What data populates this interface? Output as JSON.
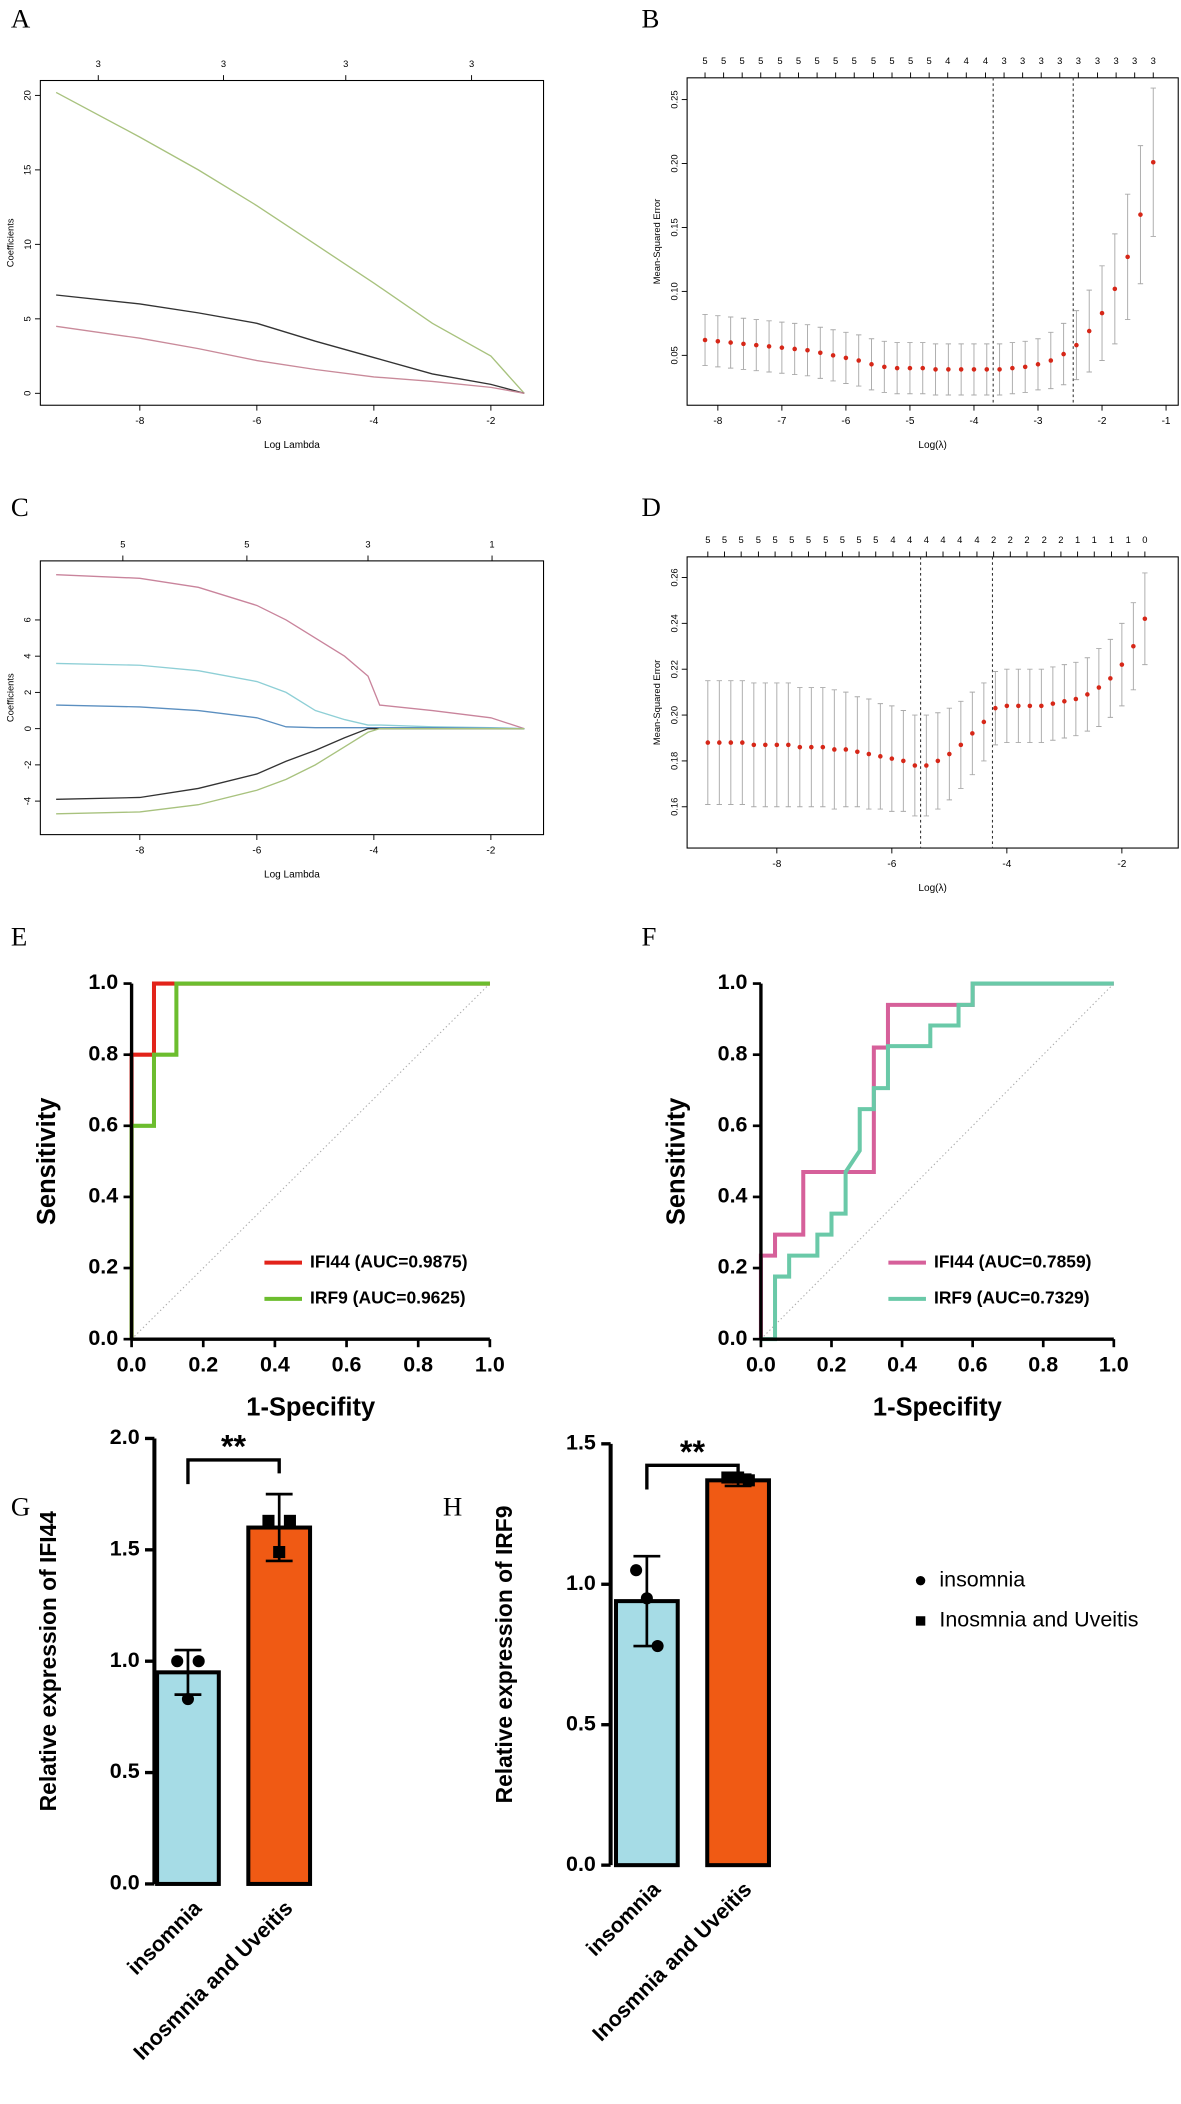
{
  "chart_data": [
    {
      "panel": "A",
      "type": "line",
      "xlabel": "Log Lambda",
      "ylabel": "Coefficients",
      "xlim": [
        -9.7,
        -1.1
      ],
      "ylim": [
        -0.8,
        21
      ],
      "xticks": [
        -8,
        -6,
        -4,
        -2
      ],
      "yticks": [
        0,
        5,
        10,
        15,
        20
      ],
      "xticks_top": [
        {
          "value": -8.71,
          "label": "3"
        },
        {
          "value": -6.57,
          "label": "3"
        },
        {
          "value": -4.48,
          "label": "3"
        },
        {
          "value": -2.33,
          "label": "3"
        }
      ],
      "x": [
        -9.43,
        -8,
        -7,
        -6,
        -5,
        -4,
        -3,
        -2,
        -1.43
      ],
      "series": [
        {
          "color": "#a8c27e",
          "values": [
            20.2,
            17.2,
            15,
            12.6,
            10,
            7.4,
            4.7,
            2.5,
            0
          ]
        },
        {
          "color": "#333333",
          "values": [
            6.6,
            6.0,
            5.4,
            4.7,
            3.5,
            2.4,
            1.3,
            0.6,
            0
          ]
        },
        {
          "color": "#c98a9a",
          "values": [
            4.5,
            3.7,
            3.0,
            2.2,
            1.6,
            1.1,
            0.8,
            0.4,
            0
          ]
        }
      ]
    },
    {
      "panel": "B",
      "type": "errorbar",
      "xlabel": "Log(λ)",
      "ylabel": "Mean-Squared Error",
      "xlim": [
        -8.48,
        -0.81
      ],
      "ylim": [
        0.011,
        0.267
      ],
      "xticks": [
        -8,
        -7,
        -6,
        -5,
        -4,
        -3,
        -2,
        -1
      ],
      "yticks": [
        0.05,
        {
          "value": 0.1,
          "label": "0.10"
        },
        0.15,
        {
          "value": 0.2,
          "label": "0.20"
        },
        0.25
      ],
      "xticks_top": [
        {
          "value": -8.2,
          "label": "5"
        },
        {
          "value": -7.91,
          "label": "5"
        },
        {
          "value": -7.62,
          "label": "5"
        },
        {
          "value": -7.33,
          "label": "5"
        },
        {
          "value": -7.03,
          "label": "5"
        },
        {
          "value": -6.74,
          "label": "5"
        },
        {
          "value": -6.45,
          "label": "5"
        },
        {
          "value": -6.16,
          "label": "5"
        },
        {
          "value": -5.87,
          "label": "5"
        },
        {
          "value": -5.57,
          "label": "5"
        },
        {
          "value": -5.28,
          "label": "5"
        },
        {
          "value": -4.99,
          "label": "5"
        },
        {
          "value": -4.7,
          "label": "5"
        },
        {
          "value": -4.41,
          "label": "4"
        },
        {
          "value": -4.12,
          "label": "4"
        },
        {
          "value": -3.82,
          "label": "4"
        },
        {
          "value": -3.53,
          "label": "3"
        },
        {
          "value": -3.24,
          "label": "3"
        },
        {
          "value": -2.95,
          "label": "3"
        },
        {
          "value": -2.66,
          "label": "3"
        },
        {
          "value": -2.37,
          "label": "3"
        },
        {
          "value": -2.07,
          "label": "3"
        },
        {
          "value": -1.78,
          "label": "3"
        },
        {
          "value": -1.49,
          "label": "3"
        },
        {
          "value": -1.2,
          "label": "3"
        }
      ],
      "x": [
        -8.2,
        -8.0,
        -7.8,
        -7.6,
        -7.4,
        -7.2,
        -7.0,
        -6.8,
        -6.6,
        -6.4,
        -6.2,
        -6.0,
        -5.8,
        -5.6,
        -5.4,
        -5.2,
        -5.0,
        -4.8,
        -4.6,
        -4.4,
        -4.2,
        -4.0,
        -3.8,
        -3.6,
        -3.4,
        -3.2,
        -3.0,
        -2.8,
        -2.6,
        -2.4,
        -2.2,
        -2.0,
        -1.8,
        -1.6,
        -1.4,
        -1.2
      ],
      "values": [
        0.062,
        0.061,
        0.06,
        0.059,
        0.058,
        0.057,
        0.056,
        0.055,
        0.054,
        0.052,
        0.05,
        0.048,
        0.046,
        0.043,
        0.041,
        0.04,
        0.04,
        0.04,
        0.039,
        0.039,
        0.039,
        0.039,
        0.039,
        0.039,
        0.04,
        0.041,
        0.043,
        0.046,
        0.051,
        0.058,
        0.069,
        0.083,
        0.102,
        0.127,
        0.16,
        0.201
      ],
      "errors": [
        0.02,
        0.02,
        0.02,
        0.02,
        0.02,
        0.02,
        0.02,
        0.02,
        0.02,
        0.02,
        0.02,
        0.02,
        0.02,
        0.02,
        0.02,
        0.02,
        0.02,
        0.02,
        0.02,
        0.02,
        0.02,
        0.02,
        0.02,
        0.02,
        0.02,
        0.02,
        0.02,
        0.022,
        0.024,
        0.027,
        0.032,
        0.037,
        0.043,
        0.049,
        0.054,
        0.058
      ],
      "color": "#d62718",
      "error_color": "#aaaaaa",
      "vlines": [
        -3.7,
        -2.45
      ]
    },
    {
      "panel": "C",
      "type": "line",
      "xlabel": "Log Lambda",
      "ylabel": "Coefficients",
      "xlim": [
        -9.7,
        -1.1
      ],
      "ylim": [
        -5.85,
        9.26
      ],
      "xticks": [
        -8,
        -6,
        -4,
        -2
      ],
      "yticks": [
        -4,
        -2,
        0,
        2,
        4,
        6
      ],
      "xticks_top": [
        {
          "value": -8.29,
          "label": "5"
        },
        {
          "value": -6.17,
          "label": "5"
        },
        {
          "value": -4.1,
          "label": "3"
        },
        {
          "value": -1.98,
          "label": "1"
        }
      ],
      "x": [
        -9.43,
        -8,
        -7,
        -6,
        -5.5,
        -5,
        -4.5,
        -4.1,
        -3.9,
        -3,
        -2,
        -1.43
      ],
      "series": [
        {
          "color": "#c9849c",
          "values": [
            8.5,
            8.3,
            7.8,
            6.8,
            6.0,
            5.0,
            4.0,
            2.9,
            1.3,
            1.0,
            0.6,
            0
          ]
        },
        {
          "color": "#8ecfd6",
          "values": [
            3.6,
            3.5,
            3.2,
            2.6,
            2.0,
            1.0,
            0.5,
            0.2,
            0.2,
            0.1,
            0.05,
            0
          ]
        },
        {
          "color": "#5b8fc0",
          "values": [
            1.3,
            1.2,
            1.0,
            0.6,
            0.1,
            0.05,
            0.05,
            0.05,
            0.05,
            0.05,
            0.02,
            0
          ]
        },
        {
          "color": "#333333",
          "values": [
            -3.9,
            -3.8,
            -3.3,
            -2.5,
            -1.8,
            -1.2,
            -0.5,
            0,
            0,
            0,
            0,
            0
          ]
        },
        {
          "color": "#a8c27e",
          "values": [
            -4.7,
            -4.6,
            -4.2,
            -3.4,
            -2.8,
            -2.0,
            -1.0,
            -0.2,
            0,
            0,
            0,
            0
          ]
        }
      ]
    },
    {
      "panel": "D",
      "type": "errorbar",
      "xlabel": "Log(λ)",
      "ylabel": "Mean-Squared Error",
      "xlim": [
        -9.56,
        -1.02
      ],
      "ylim": [
        0.142,
        0.269
      ],
      "xticks": [
        -8,
        -6,
        -4,
        -2
      ],
      "yticks": [
        0.16,
        0.18,
        {
          "value": 0.2,
          "label": "0.20"
        },
        0.22,
        0.24,
        0.26
      ],
      "xticks_top": [
        {
          "value": -9.2,
          "label": "5"
        },
        {
          "value": -8.91,
          "label": "5"
        },
        {
          "value": -8.62,
          "label": "5"
        },
        {
          "value": -8.32,
          "label": "5"
        },
        {
          "value": -8.03,
          "label": "5"
        },
        {
          "value": -7.74,
          "label": "5"
        },
        {
          "value": -7.45,
          "label": "5"
        },
        {
          "value": -7.15,
          "label": "5"
        },
        {
          "value": -6.86,
          "label": "5"
        },
        {
          "value": -6.57,
          "label": "5"
        },
        {
          "value": -6.28,
          "label": "5"
        },
        {
          "value": -5.98,
          "label": "4"
        },
        {
          "value": -5.69,
          "label": "4"
        },
        {
          "value": -5.4,
          "label": "4"
        },
        {
          "value": -5.11,
          "label": "4"
        },
        {
          "value": -4.82,
          "label": "4"
        },
        {
          "value": -4.52,
          "label": "4"
        },
        {
          "value": -4.23,
          "label": "2"
        },
        {
          "value": -3.94,
          "label": "2"
        },
        {
          "value": -3.65,
          "label": "2"
        },
        {
          "value": -3.35,
          "label": "2"
        },
        {
          "value": -3.06,
          "label": "2"
        },
        {
          "value": -2.77,
          "label": "1"
        },
        {
          "value": -2.48,
          "label": "1"
        },
        {
          "value": -2.18,
          "label": "1"
        },
        {
          "value": -1.89,
          "label": "1"
        },
        {
          "value": -1.6,
          "label": "0"
        }
      ],
      "x": [
        -9.2,
        -9.0,
        -8.8,
        -8.6,
        -8.4,
        -8.2,
        -8.0,
        -7.8,
        -7.6,
        -7.4,
        -7.2,
        -7.0,
        -6.8,
        -6.6,
        -6.4,
        -6.2,
        -6.0,
        -5.8,
        -5.6,
        -5.4,
        -5.2,
        -5.0,
        -4.8,
        -4.6,
        -4.4,
        -4.2,
        -4.0,
        -3.8,
        -3.6,
        -3.4,
        -3.2,
        -3.0,
        -2.8,
        -2.6,
        -2.4,
        -2.2,
        -2.0,
        -1.8,
        -1.6
      ],
      "values": [
        0.188,
        0.188,
        0.188,
        0.188,
        0.187,
        0.187,
        0.187,
        0.187,
        0.186,
        0.186,
        0.186,
        0.185,
        0.185,
        0.184,
        0.183,
        0.182,
        0.181,
        0.18,
        0.178,
        0.178,
        0.18,
        0.183,
        0.187,
        0.192,
        0.197,
        0.203,
        0.204,
        0.204,
        0.204,
        0.204,
        0.205,
        0.206,
        0.207,
        0.209,
        0.212,
        0.216,
        0.222,
        0.23,
        0.242
      ],
      "errors": [
        0.027,
        0.027,
        0.027,
        0.027,
        0.027,
        0.027,
        0.027,
        0.027,
        0.026,
        0.026,
        0.026,
        0.026,
        0.025,
        0.024,
        0.024,
        0.023,
        0.023,
        0.022,
        0.022,
        0.022,
        0.021,
        0.02,
        0.019,
        0.018,
        0.017,
        0.016,
        0.016,
        0.016,
        0.016,
        0.016,
        0.016,
        0.016,
        0.016,
        0.016,
        0.017,
        0.017,
        0.018,
        0.019,
        0.02
      ],
      "color": "#d62718",
      "error_color": "#aaaaaa",
      "vlines": [
        -5.5,
        -4.25
      ]
    },
    {
      "panel": "E",
      "type": "roc",
      "xlabel": "1-Specifity",
      "ylabel": "Sensitivity",
      "legend": "lower right",
      "xlim": [
        0,
        1
      ],
      "ylim": [
        0,
        1
      ],
      "xticks": [
        {
          "value": 0,
          "label": "0.0"
        },
        0.2,
        0.4,
        0.6,
        0.8,
        {
          "value": 1,
          "label": "1.0"
        }
      ],
      "yticks": [
        {
          "value": 0,
          "label": "0.0"
        },
        0.2,
        0.4,
        0.6,
        0.8,
        {
          "value": 1,
          "label": "1.0"
        }
      ],
      "series": [
        {
          "name": "IFI44 (AUC=0.9875)",
          "color": "#e2231a",
          "x": [
            0,
            0,
            0.0625,
            0.0625,
            1
          ],
          "values": [
            0,
            0.8,
            0.8,
            1,
            1
          ]
        },
        {
          "name": "IRF9 (AUC=0.9625)",
          "color": "#6cbd2e",
          "x": [
            0,
            0,
            0.0625,
            0.0625,
            0.125,
            0.125,
            1
          ],
          "values": [
            0,
            0.6,
            0.6,
            0.8,
            0.8,
            1,
            1
          ]
        }
      ]
    },
    {
      "panel": "F",
      "type": "roc",
      "xlabel": "1-Specifity",
      "ylabel": "Sensitivity",
      "legend": "lower right",
      "xlim": [
        0,
        1
      ],
      "ylim": [
        0,
        1
      ],
      "xticks": [
        {
          "value": 0,
          "label": "0.0"
        },
        0.2,
        0.4,
        0.6,
        0.8,
        {
          "value": 1,
          "label": "1.0"
        }
      ],
      "yticks": [
        {
          "value": 0,
          "label": "0.0"
        },
        0.2,
        0.4,
        0.6,
        0.8,
        {
          "value": 1,
          "label": "1.0"
        }
      ],
      "series": [
        {
          "name": "IFI44 (AUC=0.7859)",
          "color": "#d6609a",
          "x": [
            0,
            0,
            0.04,
            0.04,
            0.12,
            0.12,
            0.32,
            0.32,
            0.36,
            0.36,
            0.6,
            0.6,
            1
          ],
          "values": [
            0,
            0.235,
            0.235,
            0.294,
            0.294,
            0.47,
            0.47,
            0.82,
            0.82,
            0.94,
            0.94,
            1,
            1
          ]
        },
        {
          "name": "IRF9 (AUC=0.7329)",
          "color": "#6ac9a8",
          "x": [
            0,
            0.04,
            0.04,
            0.08,
            0.08,
            0.16,
            0.16,
            0.2,
            0.2,
            0.24,
            0.24,
            0.28,
            0.28,
            0.32,
            0.32,
            0.36,
            0.36,
            0.48,
            0.48,
            0.56,
            0.56,
            0.6,
            0.6,
            1
          ],
          "values": [
            0,
            0,
            0.176,
            0.176,
            0.235,
            0.235,
            0.294,
            0.294,
            0.353,
            0.353,
            0.47,
            0.53,
            0.647,
            0.647,
            0.706,
            0.706,
            0.824,
            0.824,
            0.882,
            0.882,
            0.94,
            0.94,
            1,
            1
          ]
        }
      ]
    },
    {
      "panel": "G",
      "type": "bar",
      "ylabel": "Relative expression of IFI44",
      "categories": [
        "insomnia",
        "Inosmnia and Uveitis"
      ],
      "values": [
        0.95,
        1.6
      ],
      "errors": [
        0.1,
        0.15
      ],
      "points": [
        [
          1.0,
          0.83,
          1.0
        ],
        [
          1.63,
          1.49,
          1.63
        ]
      ],
      "colors": [
        "#a6dce6",
        "#f05a14"
      ],
      "markers": [
        "circle",
        "square"
      ],
      "significance": "**",
      "ylim": [
        0,
        2
      ],
      "yticks": [
        {
          "value": 0,
          "label": "0.0"
        },
        0.5,
        {
          "value": 1,
          "label": "1.0"
        },
        1.5,
        {
          "value": 2,
          "label": "2.0"
        }
      ]
    },
    {
      "panel": "H",
      "type": "bar",
      "ylabel": "Relative expression of IRF9",
      "categories": [
        "insomnia",
        "Inosmnia and Uveitis"
      ],
      "values": [
        0.94,
        1.37
      ],
      "errors": [
        0.16,
        0.02
      ],
      "points": [
        [
          1.05,
          0.95,
          0.78
        ],
        [
          1.38,
          1.38,
          1.37
        ]
      ],
      "colors": [
        "#a6dce6",
        "#f05a14"
      ],
      "markers": [
        "circle",
        "square"
      ],
      "significance": "**",
      "ylim": [
        0,
        1.5
      ],
      "yticks": [
        {
          "value": 0,
          "label": "0.0"
        },
        0.5,
        {
          "value": 1,
          "label": "1.0"
        },
        1.5
      ],
      "legend": [
        "insomnia",
        "Inosmnia and Uveitis"
      ]
    }
  ]
}
